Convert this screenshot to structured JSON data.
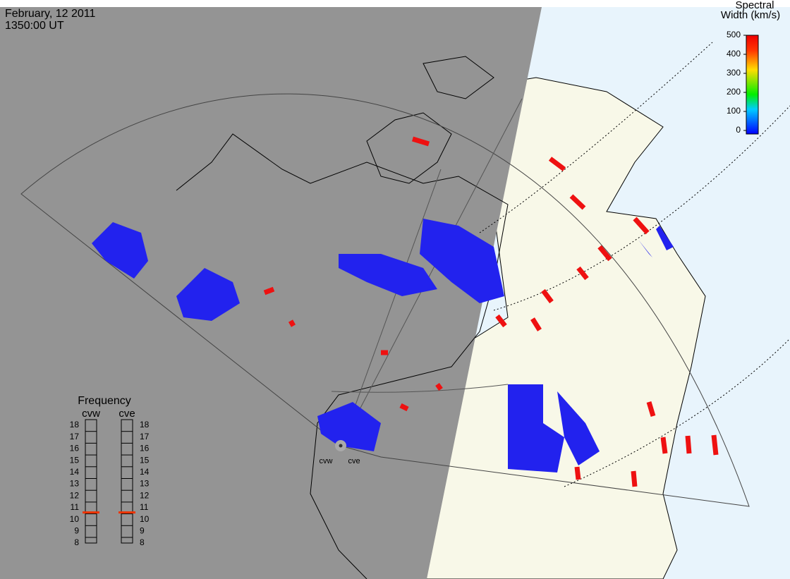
{
  "header": {
    "date": "February, 12 2011",
    "time": "1350:00 UT"
  },
  "colorbar": {
    "title": [
      "Spectral",
      "Width (km/s)"
    ],
    "lim": [
      0,
      500
    ],
    "ticks": [
      500,
      400,
      300,
      200,
      100,
      0
    ]
  },
  "frequency": {
    "title": "Frequency",
    "lim": [
      8,
      18
    ],
    "ticks": [
      18,
      17,
      16,
      15,
      14,
      13,
      12,
      11,
      10,
      9,
      8
    ],
    "radars": [
      {
        "name": "cvw",
        "value": 10.6
      },
      {
        "name": "cve",
        "value": 10.6
      }
    ]
  },
  "stations": [
    "cvw",
    "cve"
  ]
}
